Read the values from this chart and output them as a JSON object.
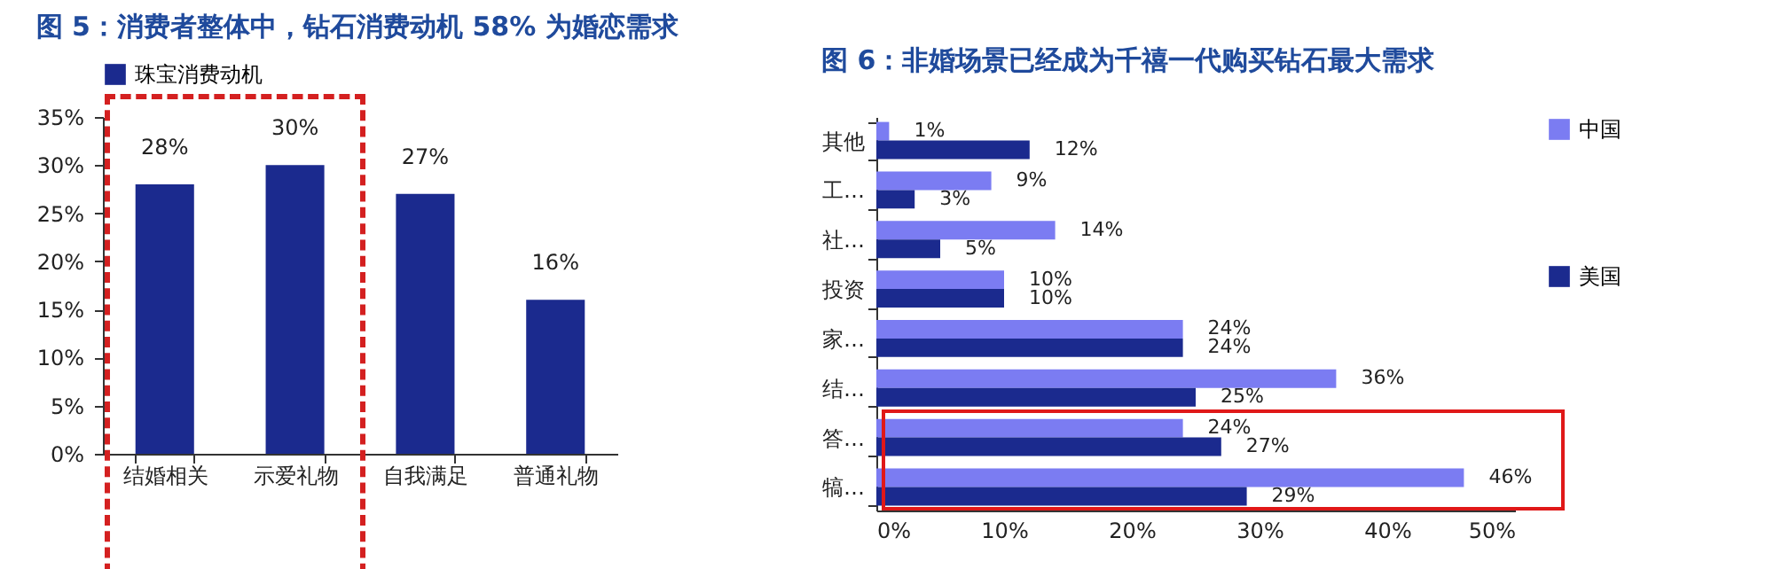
{
  "chart_data": [
    {
      "type": "bar",
      "title": "图 5：消费者整体中，钻石消费动机 58% 为婚恋需求",
      "categories": [
        "结婚相关",
        "示爱礼物",
        "自我满足",
        "普通礼物"
      ],
      "series": [
        {
          "name": "珠宝消费动机",
          "color": "#1b2a8e",
          "values": [
            28,
            30,
            27,
            16
          ],
          "value_labels": [
            "28%",
            "30%",
            "27%",
            "16%"
          ]
        }
      ],
      "ylim": [
        0,
        35
      ],
      "yticks": [
        {
          "value": 0,
          "label": "0%"
        },
        {
          "value": 5,
          "label": "5%"
        },
        {
          "value": 10,
          "label": "10%"
        },
        {
          "value": 15,
          "label": "15%"
        },
        {
          "value": 20,
          "label": "20%"
        },
        {
          "value": 25,
          "label": "25%"
        },
        {
          "value": 30,
          "label": "30%"
        },
        {
          "value": 35,
          "label": "35%"
        }
      ],
      "grid": false,
      "legend": "top"
    },
    {
      "type": "bar",
      "orientation": "horizontal",
      "title": "图 6：非婚场景已经成为千禧一代购买钻石最大需求",
      "categories": [
        "其他",
        "工…",
        "社…",
        "投资",
        "家…",
        "结…",
        "答…",
        "犒…"
      ],
      "series": [
        {
          "name": "中国",
          "color": "#7b7cf2",
          "values": [
            1,
            9,
            14,
            10,
            24,
            36,
            24,
            46
          ],
          "value_labels": [
            "1%",
            "9%",
            "14%",
            "10%",
            "24%",
            "36%",
            "24%",
            "46%"
          ]
        },
        {
          "name": "美国",
          "color": "#1b2a8e",
          "values": [
            12,
            3,
            5,
            10,
            24,
            25,
            27,
            29
          ],
          "value_labels": [
            "12%",
            "3%",
            "5%",
            "10%",
            "24%",
            "25%",
            "27%",
            "29%"
          ]
        }
      ],
      "xlim": [
        0,
        50
      ],
      "xticks": [
        {
          "value": 0,
          "label": "0%"
        },
        {
          "value": 10,
          "label": "10%"
        },
        {
          "value": 20,
          "label": "20%"
        },
        {
          "value": 30,
          "label": "30%"
        },
        {
          "value": 40,
          "label": "40%"
        },
        {
          "value": 50,
          "label": "50%"
        }
      ],
      "grid": false,
      "legend": "right"
    }
  ]
}
